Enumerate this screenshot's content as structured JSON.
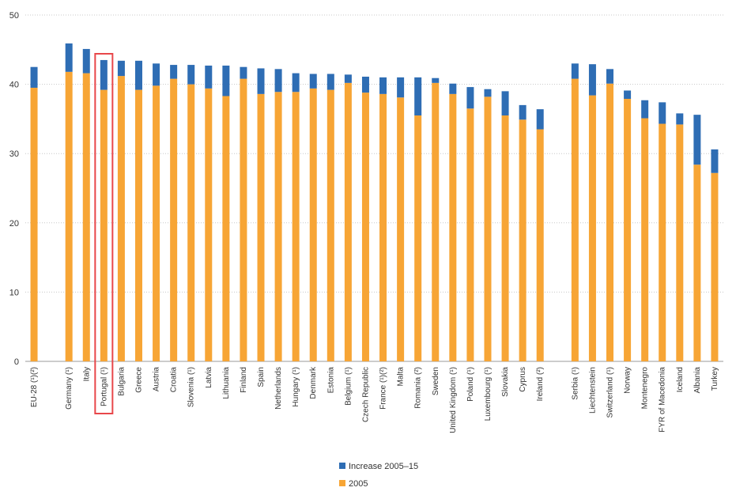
{
  "chart_data": {
    "type": "bar",
    "stacked": true,
    "title": "",
    "xlabel": "",
    "ylabel": "",
    "ylim": [
      0,
      50
    ],
    "yticks": [
      0,
      10,
      20,
      30,
      40,
      50
    ],
    "grid": true,
    "legend_position": "bottom-center",
    "highlighted_category": "Portugal (¹)",
    "colors": {
      "increase": "#2e6db4",
      "base": "#f7a535",
      "highlight": "#e8474a"
    },
    "categories": [
      "EU-28 (¹)(²)",
      "",
      "Germany (¹)",
      "Italy",
      "Portugal (¹)",
      "Bulgaria",
      "Greece",
      "Austria",
      "Croatia",
      "Slovenia (¹)",
      "Latvia",
      "Lithuania",
      "Finland",
      "Spain",
      "Netherlands",
      "Hungary (¹)",
      "Denmark",
      "Estonia",
      "Belgium (¹)",
      "Czech Republic",
      "France (¹)(²)",
      "Malta",
      "Romania (²)",
      "Sweden",
      "United Kingdom (¹)",
      "Poland (¹)",
      "Luxembourg (¹)",
      "Slovakia",
      "Cyprus",
      "Ireland (²)",
      "",
      "Serbia (¹)",
      "Liechtenstein",
      "Switzerland (¹)",
      "Norway",
      "Montenegro",
      "FYR of Macedonia",
      "Iceland",
      "Albania",
      "Turkey"
    ],
    "series": [
      {
        "name": "2005",
        "color": "#f7a535",
        "values": [
          39.5,
          null,
          41.8,
          41.6,
          39.2,
          41.2,
          39.2,
          39.8,
          40.8,
          40.0,
          39.4,
          38.3,
          40.8,
          38.6,
          38.9,
          38.9,
          39.4,
          39.2,
          40.2,
          38.8,
          38.6,
          38.1,
          35.5,
          40.2,
          38.6,
          36.5,
          38.2,
          35.5,
          34.9,
          33.5,
          null,
          40.8,
          38.4,
          40.1,
          37.9,
          35.1,
          34.3,
          34.2,
          28.4,
          27.2
        ]
      },
      {
        "name": "Increase 2005–15",
        "color": "#2e6db4",
        "values": [
          3.0,
          null,
          4.1,
          3.5,
          4.3,
          2.2,
          4.2,
          3.2,
          2.0,
          2.8,
          3.3,
          4.4,
          1.7,
          3.7,
          3.3,
          2.7,
          2.1,
          2.3,
          1.2,
          2.3,
          2.4,
          2.9,
          5.5,
          0.7,
          1.5,
          3.1,
          1.1,
          3.5,
          2.1,
          2.9,
          null,
          2.2,
          4.5,
          2.1,
          1.2,
          2.6,
          3.1,
          1.6,
          7.2,
          3.4
        ]
      }
    ]
  }
}
